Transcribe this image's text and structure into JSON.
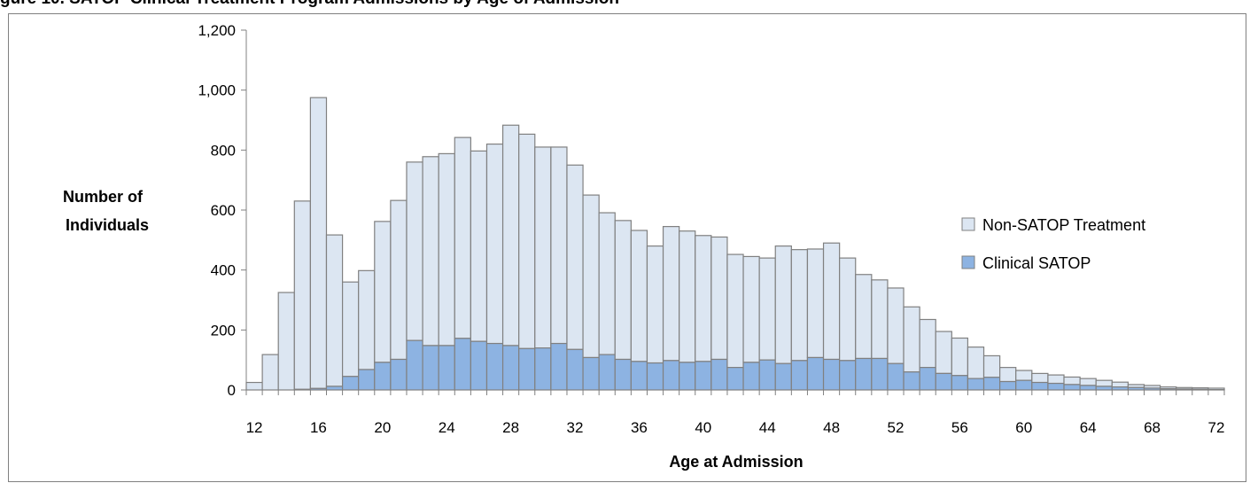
{
  "caption": "gure 10. SATOP Clinical Treatment Program Admissions by Age of Admission",
  "chart_data": {
    "type": "bar",
    "stacked": true,
    "x": [
      12,
      13,
      14,
      15,
      16,
      17,
      18,
      19,
      20,
      21,
      22,
      23,
      24,
      25,
      26,
      27,
      28,
      29,
      30,
      31,
      32,
      33,
      34,
      35,
      36,
      37,
      38,
      39,
      40,
      41,
      42,
      43,
      44,
      45,
      46,
      47,
      48,
      49,
      50,
      51,
      52,
      53,
      54,
      55,
      56,
      57,
      58,
      59,
      60,
      61,
      62,
      63,
      64,
      65,
      66,
      67,
      68,
      69,
      70,
      71,
      72
    ],
    "xticks": [
      "12",
      "16",
      "20",
      "24",
      "28",
      "32",
      "36",
      "40",
      "44",
      "48",
      "52",
      "56",
      "60",
      "64",
      "68",
      "72"
    ],
    "series": [
      {
        "name": "Clinical SATOP",
        "color": "#8db3e2",
        "values": [
          0,
          0,
          0,
          2,
          5,
          12,
          45,
          68,
          92,
          102,
          165,
          148,
          148,
          172,
          162,
          155,
          148,
          138,
          140,
          155,
          135,
          108,
          118,
          102,
          95,
          90,
          98,
          92,
          95,
          102,
          75,
          92,
          100,
          88,
          98,
          108,
          102,
          98,
          105,
          105,
          88,
          60,
          75,
          55,
          48,
          38,
          42,
          28,
          32,
          25,
          22,
          18,
          15,
          12,
          10,
          8,
          6,
          4,
          3,
          2,
          1
        ]
      },
      {
        "name": "Non-SATOP Treatment",
        "color": "#dce6f2",
        "values": [
          25,
          118,
          325,
          628,
          970,
          505,
          315,
          330,
          470,
          530,
          595,
          630,
          640,
          670,
          635,
          665,
          735,
          715,
          670,
          655,
          615,
          542,
          473,
          463,
          437,
          390,
          447,
          438,
          420,
          408,
          377,
          353,
          340,
          392,
          370,
          362,
          388,
          342,
          280,
          262,
          252,
          217,
          160,
          140,
          125,
          105,
          72,
          47,
          33,
          30,
          28,
          25,
          23,
          20,
          16,
          10,
          9,
          6,
          5,
          5,
          5
        ]
      }
    ],
    "ylim": [
      0,
      1200
    ],
    "yticks": [
      "0",
      "200",
      "400",
      "600",
      "800",
      "1,000",
      "1,200"
    ],
    "ytick_values": [
      0,
      200,
      400,
      600,
      800,
      1000,
      1200
    ],
    "xlabel": "Age at Admission",
    "ylabel": [
      "Number of",
      "Individuals"
    ],
    "legend": [
      "Non-SATOP Treatment",
      "Clinical SATOP"
    ],
    "legend_position": "right",
    "grid": false
  }
}
